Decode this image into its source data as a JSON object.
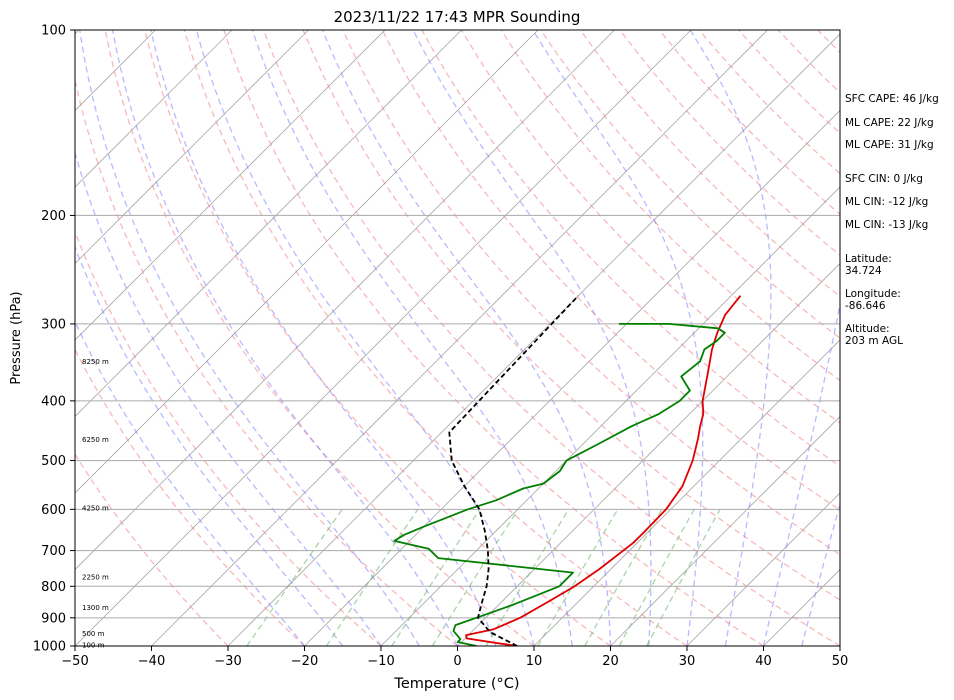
{
  "chart_data": {
    "type": "skew-t",
    "title": "2023/11/22 17:43 MPR Sounding",
    "xlabel": "Temperature (°C)",
    "ylabel": "Pressure (hPa)",
    "xlim": [
      -50,
      50
    ],
    "ylim": [
      1000,
      100
    ],
    "y_scale": "log",
    "grid": true,
    "x_ticks": [
      -50,
      -40,
      -30,
      -20,
      -10,
      0,
      10,
      20,
      30,
      40,
      50
    ],
    "y_ticks": [
      100,
      200,
      300,
      400,
      500,
      600,
      700,
      800,
      900,
      1000
    ],
    "series": [
      {
        "color": "#e00000",
        "x": [
          7.8,
          5.0,
          0.2,
          -0.3,
          2.5,
          4.5,
          6.0,
          7.5,
          8.5,
          9.2,
          9.5,
          9.5,
          9.4,
          8.5,
          6.5,
          4.3,
          3.0,
          1.8,
          0.0,
          -3.0,
          -5.5,
          -7.0,
          -8.3,
          -8.8
        ],
        "y": [
          1000,
          990,
          972,
          960,
          940,
          900,
          850,
          800,
          750,
          700,
          680,
          650,
          600,
          550,
          500,
          460,
          440,
          420,
          400,
          360,
          330,
          310,
          290,
          270
        ]
      },
      {
        "color": "#007f00",
        "x": [
          2.5,
          -0.5,
          -0.5,
          -2.5,
          -3.0,
          -0.5,
          2.0,
          5.5,
          5.5,
          -14.0,
          -16.5,
          -22.0,
          -21.5,
          -20.0,
          -16.5,
          -14.0,
          -12.0,
          -10.0,
          -9.5,
          -10.0,
          -8.0,
          -6.0,
          -4.0,
          -3.0,
          -3.0,
          -6.0,
          -5.5,
          -6.5,
          -6.0,
          -6.0,
          -7.5,
          -14.5,
          -21.0
        ],
        "y": [
          1000,
          985,
          975,
          945,
          925,
          890,
          855,
          800,
          760,
          720,
          695,
          675,
          660,
          640,
          600,
          580,
          555,
          545,
          520,
          500,
          470,
          440,
          420,
          400,
          385,
          365,
          345,
          330,
          320,
          310,
          305,
          300,
          300
        ]
      },
      {
        "color": "#000000",
        "x": [
          7.8,
          2.5,
          -1.0,
          -2.5,
          -4.0,
          -6.0,
          -8.5,
          -11.5,
          -15.0,
          -20.0,
          -25.0,
          -29.0,
          -30.0
        ],
        "y": [
          1000,
          950,
          900,
          850,
          800,
          750,
          700,
          650,
          600,
          550,
          500,
          450,
          270
        ]
      }
    ],
    "height_labels": [
      {
        "text": "100 m",
        "p": 996
      },
      {
        "text": "500 m",
        "p": 955
      },
      {
        "text": "1300 m",
        "p": 866
      },
      {
        "text": "2250 m",
        "p": 772
      },
      {
        "text": "4250 m",
        "p": 597
      },
      {
        "text": "6250 m",
        "p": 462
      },
      {
        "text": "8250 m",
        "p": 345
      }
    ],
    "colors": {
      "temperature": "#e00000",
      "dewpoint": "#007f00",
      "parcel": "#000000",
      "isotherm": "#a8a8a8",
      "dry_adiabat": "#f08080",
      "moist_adiabat": "#8080ff",
      "mixing_ratio": "#60b060"
    }
  },
  "annotations": [
    "SFC CAPE: 46 J/kg",
    "ML CAPE: 22 J/kg",
    "ML CAPE: 31 J/kg",
    "SFC CIN: 0 J/kg",
    "ML CIN: -12 J/kg",
    "ML CIN: -13 J/kg",
    "Latitude:\n34.724",
    "Longitude:\n-86.646",
    "Altitude:\n203 m AGL"
  ]
}
